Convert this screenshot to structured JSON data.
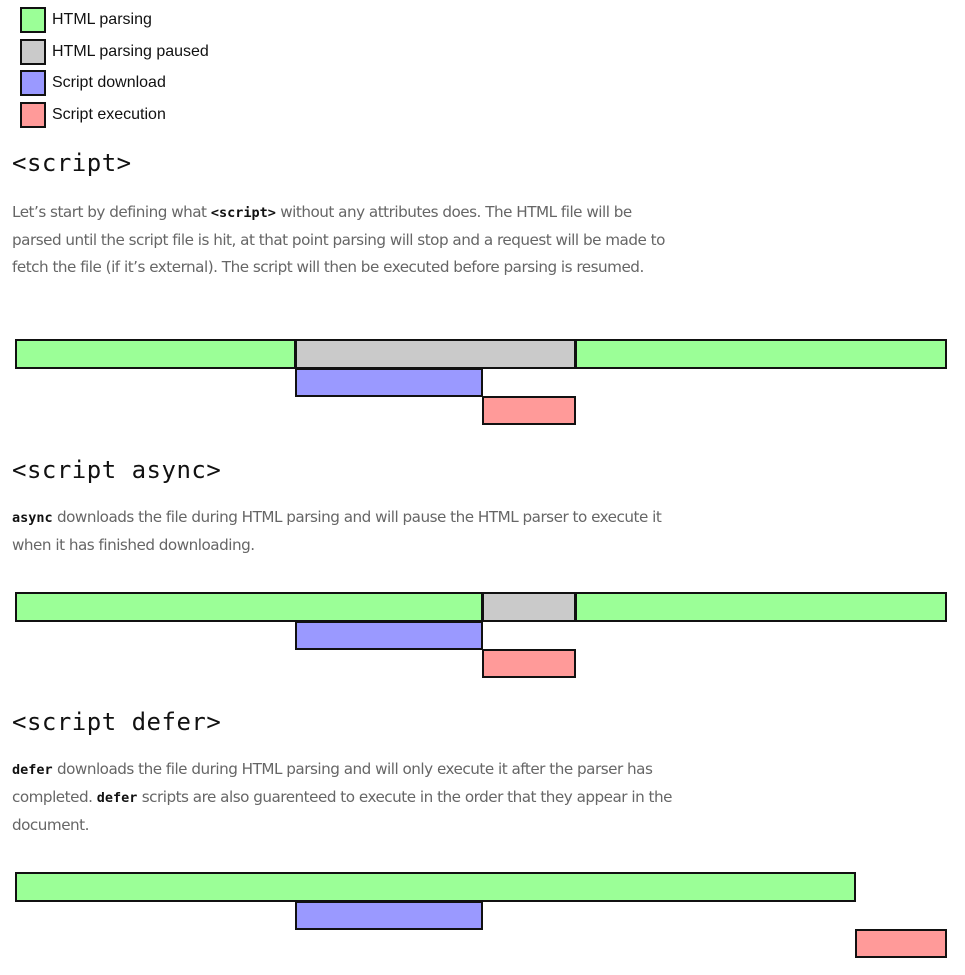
{
  "colors": {
    "parsing": "#9bff97",
    "paused": "#cacaca",
    "download": "#9a99ff",
    "execution": "#ff9a99",
    "border": "#111111"
  },
  "legend": [
    {
      "label": "HTML parsing",
      "key": "parsing"
    },
    {
      "label": "HTML parsing paused",
      "key": "paused"
    },
    {
      "label": "Script download",
      "key": "download"
    },
    {
      "label": "Script execution",
      "key": "execution"
    }
  ],
  "sections": [
    {
      "title": "<script>",
      "text_parts": [
        {
          "t": "Let’s start by defining what "
        },
        {
          "code": "<script>"
        },
        {
          "t": " without any attributes does. The HTML file will be parsed until the script file is hit, at that point parsing will stop and a request will be made to fetch the file (if it’s external). The script will then be executed before parsing is resumed."
        }
      ]
    },
    {
      "title": "<script async>",
      "text_parts": [
        {
          "code": "async"
        },
        {
          "t": " downloads the file during HTML parsing and will pause the HTML parser to execute it when it has finished downloading."
        }
      ]
    },
    {
      "title": "<script defer>",
      "text_parts": [
        {
          "code": "defer"
        },
        {
          "t": " downloads the file during HTML parsing and will only execute it after the parser has completed. "
        },
        {
          "code": "defer"
        },
        {
          "t": " scripts are also guarenteed to execute in the order that they appear in the document."
        }
      ]
    }
  ],
  "chart_data": [
    {
      "type": "timeline",
      "title": "<script>",
      "segments": [
        {
          "row": 0,
          "kind": "parsing",
          "start": 15,
          "end": 295
        },
        {
          "row": 0,
          "kind": "paused",
          "start": 295,
          "end": 575
        },
        {
          "row": 0,
          "kind": "parsing",
          "start": 575,
          "end": 946
        },
        {
          "row": 1,
          "kind": "download",
          "start": 295,
          "end": 482
        },
        {
          "row": 2,
          "kind": "execution",
          "start": 482,
          "end": 575
        }
      ]
    },
    {
      "type": "timeline",
      "title": "<script async>",
      "segments": [
        {
          "row": 0,
          "kind": "parsing",
          "start": 15,
          "end": 482
        },
        {
          "row": 0,
          "kind": "paused",
          "start": 482,
          "end": 575
        },
        {
          "row": 0,
          "kind": "parsing",
          "start": 575,
          "end": 946
        },
        {
          "row": 1,
          "kind": "download",
          "start": 295,
          "end": 482
        },
        {
          "row": 2,
          "kind": "execution",
          "start": 482,
          "end": 575
        }
      ]
    },
    {
      "type": "timeline",
      "title": "<script defer>",
      "segments": [
        {
          "row": 0,
          "kind": "parsing",
          "start": 15,
          "end": 855
        },
        {
          "row": 1,
          "kind": "download",
          "start": 295,
          "end": 482
        },
        {
          "row": 2,
          "kind": "execution",
          "start": 855,
          "end": 946
        }
      ]
    }
  ]
}
